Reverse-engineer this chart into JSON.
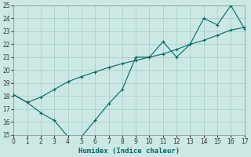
{
  "xlabel": "Humidex (Indice chaleur)",
  "bg_color": "#cce8e4",
  "grid_color": "#aad0cc",
  "line_color": "#006666",
  "line1_x": [
    0,
    1,
    2,
    3,
    4,
    5,
    6,
    7,
    8,
    9,
    10,
    11,
    12,
    13,
    14,
    15,
    16,
    17
  ],
  "line1_y": [
    18.1,
    17.5,
    16.7,
    16.1,
    14.85,
    14.85,
    16.1,
    17.4,
    18.5,
    21.0,
    21.0,
    22.2,
    21.0,
    22.0,
    24.0,
    23.5,
    25.0,
    23.2
  ],
  "line2_x": [
    0,
    1,
    2,
    3,
    4,
    5,
    6,
    7,
    8,
    9,
    10,
    11,
    12,
    13,
    14,
    15,
    16,
    17
  ],
  "line2_y": [
    18.1,
    17.5,
    17.9,
    18.5,
    19.1,
    19.5,
    19.85,
    20.2,
    20.5,
    20.75,
    21.0,
    21.25,
    21.6,
    22.0,
    22.3,
    22.7,
    23.1,
    23.3
  ],
  "xlim": [
    0,
    17
  ],
  "ylim": [
    15,
    25
  ],
  "xticks": [
    0,
    1,
    2,
    3,
    4,
    5,
    6,
    7,
    8,
    9,
    10,
    11,
    12,
    13,
    14,
    15,
    16,
    17
  ],
  "yticks": [
    15,
    16,
    17,
    18,
    19,
    20,
    21,
    22,
    23,
    24,
    25
  ]
}
